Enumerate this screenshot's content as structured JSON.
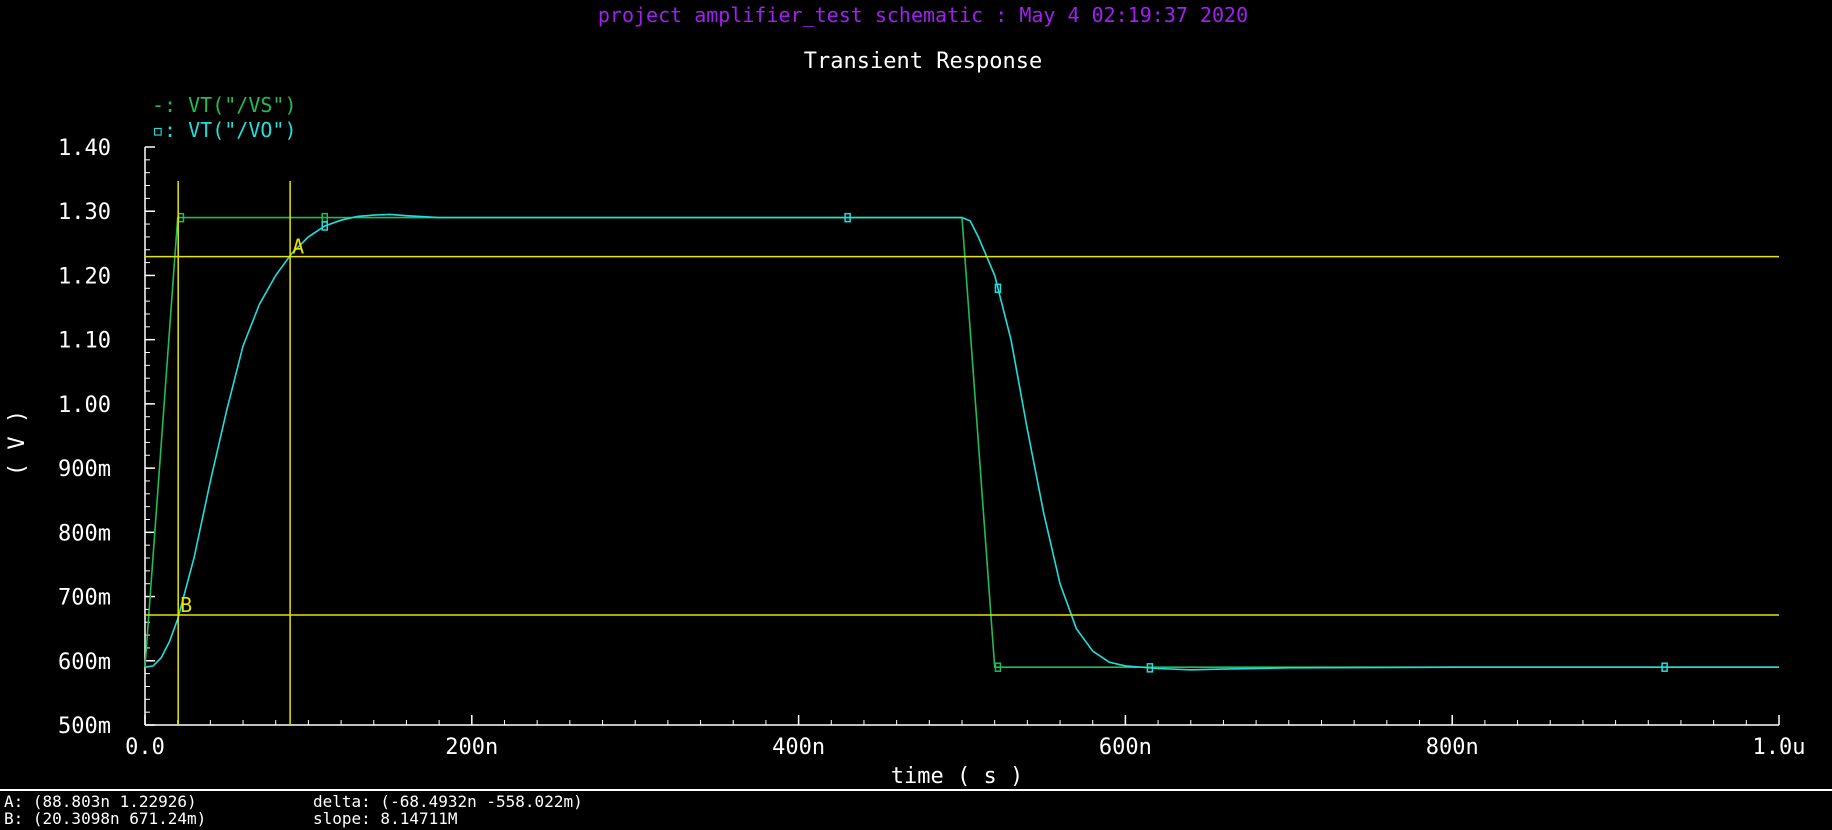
{
  "header": {
    "project_line": "project amplifier_test schematic : May  4 02:19:37 2020"
  },
  "colors": {
    "background": "#000000",
    "header_text": "#a020f0",
    "title_text": "#ffffff",
    "axis": "#ffffff",
    "vs_series": "#22bb55",
    "vo_series": "#22dddd",
    "marker_lines": "#e5e500"
  },
  "chart_data": {
    "type": "line",
    "title": "Transient Response",
    "xlabel": "time ( s )",
    "ylabel": "( V )",
    "xlim": [
      0,
      1e-06
    ],
    "ylim": [
      0.5,
      1.4
    ],
    "x_ticks": [
      {
        "value": 0,
        "label": "0.0"
      },
      {
        "value": 2e-07,
        "label": "200n"
      },
      {
        "value": 4e-07,
        "label": "400n"
      },
      {
        "value": 6e-07,
        "label": "600n"
      },
      {
        "value": 8e-07,
        "label": "800n"
      },
      {
        "value": 1e-06,
        "label": "1.0u"
      }
    ],
    "y_ticks": [
      {
        "value": 1.4,
        "label": "1.40"
      },
      {
        "value": 1.3,
        "label": "1.30"
      },
      {
        "value": 1.2,
        "label": "1.20"
      },
      {
        "value": 1.1,
        "label": "1.10"
      },
      {
        "value": 1.0,
        "label": "1.00"
      },
      {
        "value": 0.9,
        "label": "900m"
      },
      {
        "value": 0.8,
        "label": "800m"
      },
      {
        "value": 0.7,
        "label": "700m"
      },
      {
        "value": 0.6,
        "label": "600m"
      },
      {
        "value": 0.5,
        "label": "500m"
      }
    ],
    "legend_position": "top-left",
    "grid": false,
    "series": [
      {
        "name": "VT(\"/VS\")",
        "legend": "-: VT(\"/VS\")",
        "color": "#22bb55",
        "x": [
          0,
          2e-08,
          5e-07,
          5.2e-07,
          1e-06
        ],
        "y": [
          0.59,
          1.29,
          1.29,
          0.59,
          0.59
        ],
        "markers_x": [
          2.2e-08,
          1.1e-07,
          5.22e-07
        ]
      },
      {
        "name": "VT(\"/VO\")",
        "legend": "▫: VT(\"/VO\")",
        "color": "#22dddd",
        "x": [
          0,
          5e-09,
          1e-08,
          1.5e-08,
          2e-08,
          3e-08,
          4e-08,
          5e-08,
          6e-08,
          7e-08,
          8e-08,
          9e-08,
          1e-07,
          1.1e-07,
          1.2e-07,
          1.3e-07,
          1.4e-07,
          1.5e-07,
          1.6e-07,
          1.8e-07,
          2e-07,
          3e-07,
          4e-07,
          5e-07,
          5.05e-07,
          5.1e-07,
          5.2e-07,
          5.3e-07,
          5.4e-07,
          5.5e-07,
          5.6e-07,
          5.7e-07,
          5.8e-07,
          5.9e-07,
          6e-07,
          6.2e-07,
          6.4e-07,
          6.6e-07,
          7e-07,
          8e-07,
          9e-07,
          1e-06
        ],
        "y": [
          0.59,
          0.592,
          0.605,
          0.63,
          0.665,
          0.76,
          0.88,
          0.99,
          1.09,
          1.155,
          1.2,
          1.235,
          1.26,
          1.277,
          1.286,
          1.292,
          1.294,
          1.295,
          1.293,
          1.29,
          1.29,
          1.29,
          1.29,
          1.29,
          1.285,
          1.26,
          1.2,
          1.1,
          0.96,
          0.83,
          0.72,
          0.65,
          0.615,
          0.598,
          0.592,
          0.588,
          0.586,
          0.587,
          0.589,
          0.59,
          0.59,
          0.59
        ],
        "markers_x": [
          1.1e-07,
          4.3e-07,
          5.22e-07,
          6.15e-07,
          9.3e-07
        ]
      }
    ],
    "markers": [
      {
        "name": "A",
        "x": 8.8803e-08,
        "y": 1.22926
      },
      {
        "name": "B",
        "x": 2.03098e-08,
        "y": 0.67124
      }
    ]
  },
  "status": {
    "marker_a": "A: (88.803n 1.22926)",
    "marker_b": "B: (20.3098n 671.24m)",
    "delta": "delta: (-68.4932n -558.022m)",
    "slope": "slope: 8.14711M"
  }
}
